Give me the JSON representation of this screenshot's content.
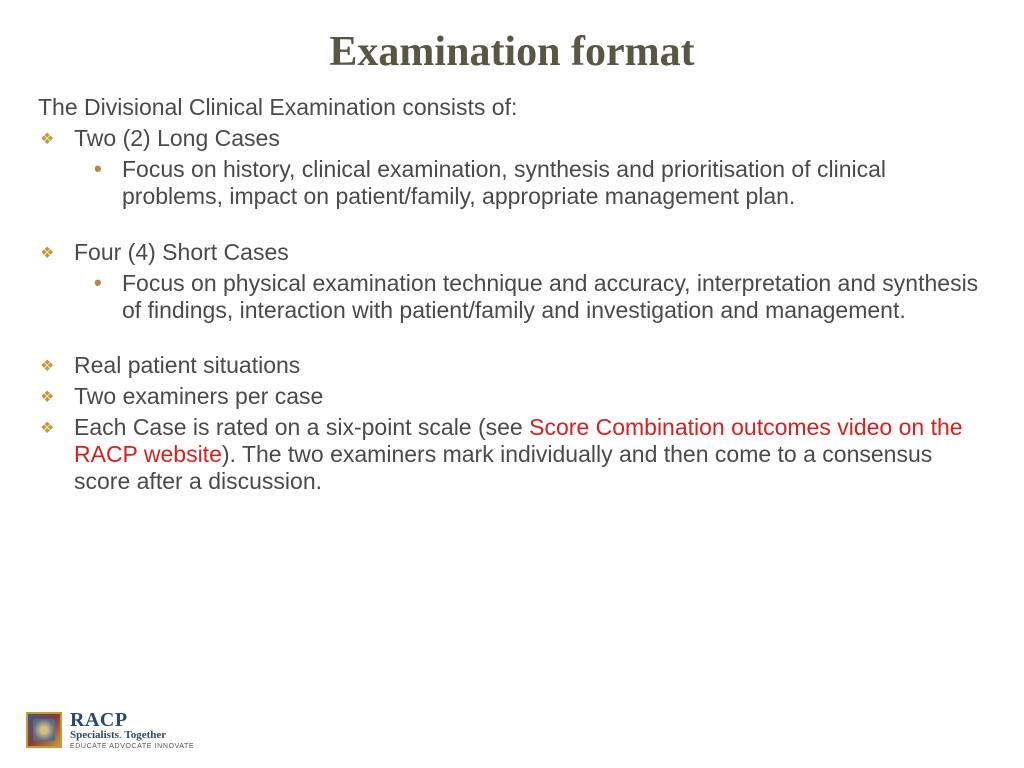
{
  "title": "Examination format",
  "intro": "The Divisional Clinical Examination consists of:",
  "items": [
    {
      "label": "Two (2) Long Cases",
      "sub": "Focus on history, clinical examination, synthesis and prioritisation of clinical problems, impact on patient/family, appropriate management plan.",
      "spaced": false
    },
    {
      "label": "Four (4) Short Cases",
      "sub": "Focus on physical examination technique and accuracy, interpretation and synthesis of findings, interaction with patient/family and investigation and management.",
      "spaced": true
    },
    {
      "label": "Real patient situations",
      "sub": null,
      "spaced": true
    },
    {
      "label": "Two examiners per case",
      "sub": null,
      "spaced": false
    }
  ],
  "last_item": {
    "pre": "Each Case is rated on a six-point scale (see ",
    "link": "Score Combination outcomes video on the RACP website",
    "post": "). The two examiners mark individually and then come to a consensus score after a discussion."
  },
  "logo": {
    "name": "RACP",
    "tag_bold1": "Specialists",
    "tag_dot": ".",
    "tag_bold2": "Together",
    "motto": "EDUCATE  ADVOCATE  INNOVATE"
  },
  "colors": {
    "title": "#595744",
    "body": "#4a4a4a",
    "diamond": "#c69a3a",
    "dot": "#b08948",
    "link": "#d92020",
    "logo_text": "#2a4a6a"
  },
  "fonts": {
    "title_size": 42,
    "body_size": 23
  }
}
